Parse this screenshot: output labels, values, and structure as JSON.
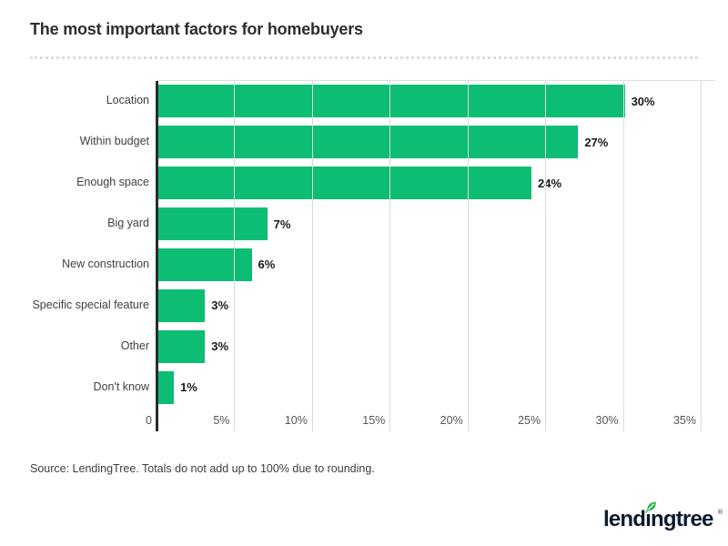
{
  "title": "The most important factors for homebuyers",
  "source_note": "Source: LendingTree. Totals do not add up to 100% due to rounding.",
  "logo": {
    "text": "lendıngtree",
    "registered_mark": "®",
    "text_color": "#0b1b2e",
    "leaf_color": "#2fb34a"
  },
  "colors": {
    "bar": "#0dbd73",
    "axis": "#2b2b2b",
    "gridline": "#d9d9d9"
  },
  "chart_data": {
    "type": "bar",
    "orientation": "horizontal",
    "title": "The most important factors for homebuyers",
    "xlabel": "",
    "ylabel": "",
    "grid": true,
    "legend": "none",
    "xlim": [
      0,
      35
    ],
    "categories": [
      "Location",
      "Within budget",
      "Enough space",
      "Big yard",
      "New construction",
      "Specific special feature",
      "Other",
      "Don't know"
    ],
    "values": [
      30,
      27,
      24,
      7,
      6,
      3,
      3,
      1
    ],
    "value_labels": [
      "30%",
      "27%",
      "24%",
      "7%",
      "6%",
      "3%",
      "3%",
      "1%"
    ],
    "x_ticks": [
      {
        "label": "0",
        "value": 0
      },
      {
        "label": "5%",
        "value": 5
      },
      {
        "label": "10%",
        "value": 10
      },
      {
        "label": "15%",
        "value": 15
      },
      {
        "label": "20%",
        "value": 20
      },
      {
        "label": "25%",
        "value": 25
      },
      {
        "label": "30%",
        "value": 30
      },
      {
        "label": "35%",
        "value": 35
      }
    ]
  }
}
